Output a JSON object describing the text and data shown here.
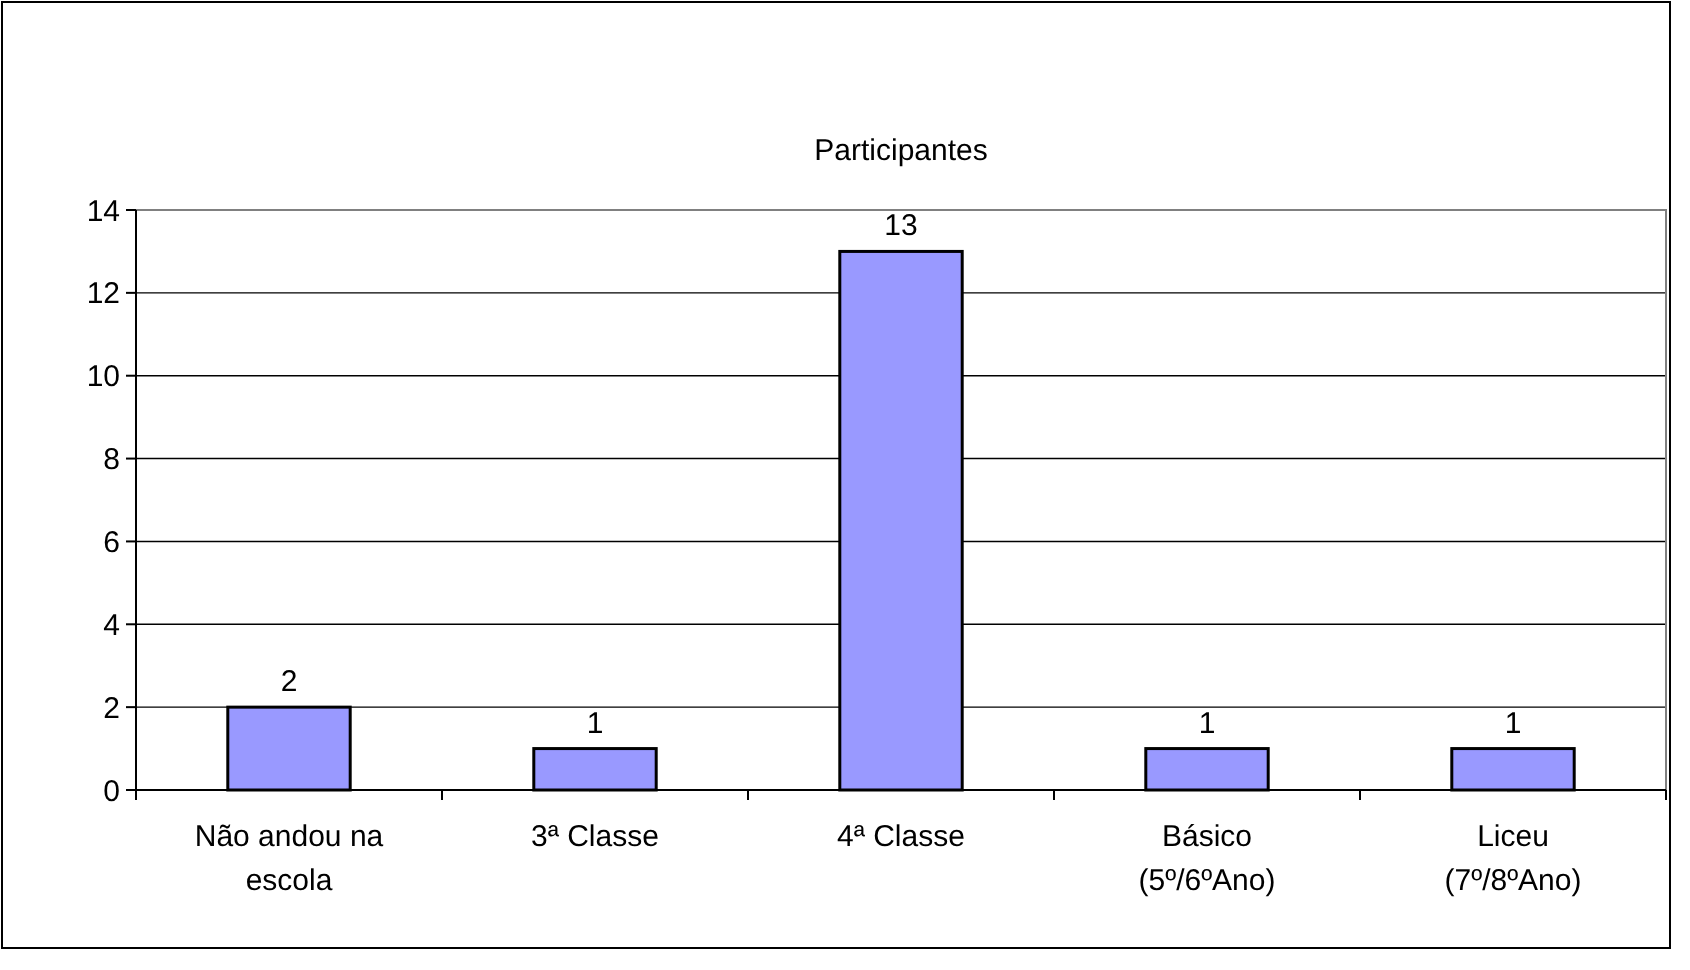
{
  "chart_data": {
    "type": "bar",
    "title": "Participantes",
    "categories": [
      "Não andou na escola",
      "3ª Classe",
      "4ª Classe",
      "Básico (5º/6ºAno)",
      "Liceu (7º/8ºAno)"
    ],
    "values": [
      2,
      1,
      13,
      1,
      1
    ],
    "color": "#9999ff",
    "ylim": [
      0,
      14
    ],
    "yticks": [
      0,
      2,
      4,
      6,
      8,
      10,
      12,
      14
    ],
    "grid": "y",
    "data_labels": true
  }
}
